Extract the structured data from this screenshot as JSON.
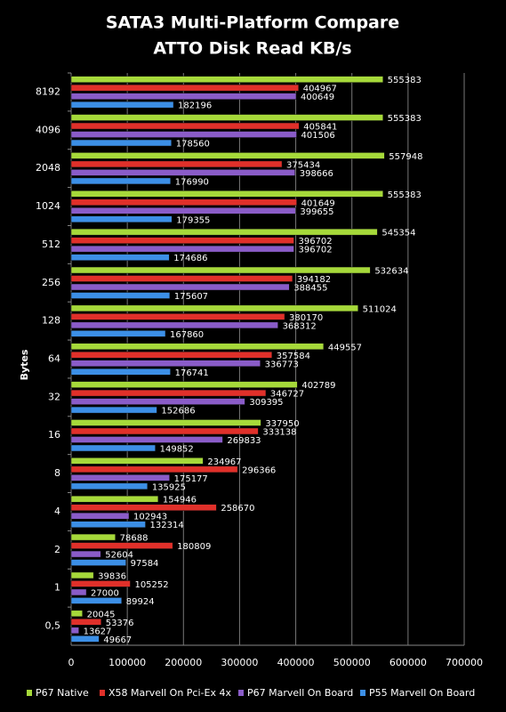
{
  "chart_data": {
    "type": "bar",
    "orientation": "horizontal",
    "title": "SATA3 Multi-Platform Compare",
    "subtitle": "ATTO Disk Read KB/s",
    "y_label": "Bytes",
    "categories": [
      "8192",
      "4096",
      "2048",
      "1024",
      "512",
      "256",
      "128",
      "64",
      "32",
      "16",
      "8",
      "4",
      "2",
      "1",
      "0,5"
    ],
    "series": [
      {
        "name": "P67 Native",
        "color": "#a6d93a",
        "values": [
          555383,
          555383,
          557948,
          555383,
          545354,
          532634,
          511024,
          449557,
          402789,
          337950,
          234967,
          154946,
          78688,
          39836,
          20045
        ]
      },
      {
        "name": "X58 Marvell On Pci-Ex 4x",
        "color": "#e0302a",
        "values": [
          404967,
          405841,
          375434,
          401649,
          396702,
          394182,
          380170,
          357584,
          346727,
          333138,
          296366,
          258670,
          180809,
          105252,
          53376
        ]
      },
      {
        "name": "P67 Marvell On Board",
        "color": "#8a5cc8",
        "values": [
          400649,
          401506,
          398666,
          399655,
          396702,
          388455,
          368312,
          336773,
          309395,
          269833,
          175177,
          102943,
          52604,
          27000,
          13627
        ]
      },
      {
        "name": "P55 Marvell On Board",
        "color": "#3c8fe6",
        "values": [
          182196,
          178560,
          176990,
          179355,
          174686,
          175607,
          167860,
          176741,
          152686,
          149852,
          135925,
          132314,
          97584,
          89924,
          49667
        ]
      }
    ],
    "xlim": [
      0,
      700000
    ],
    "xticks": [
      0,
      100000,
      200000,
      300000,
      400000,
      500000,
      600000,
      700000
    ],
    "grid": true,
    "legend": "bottom"
  }
}
